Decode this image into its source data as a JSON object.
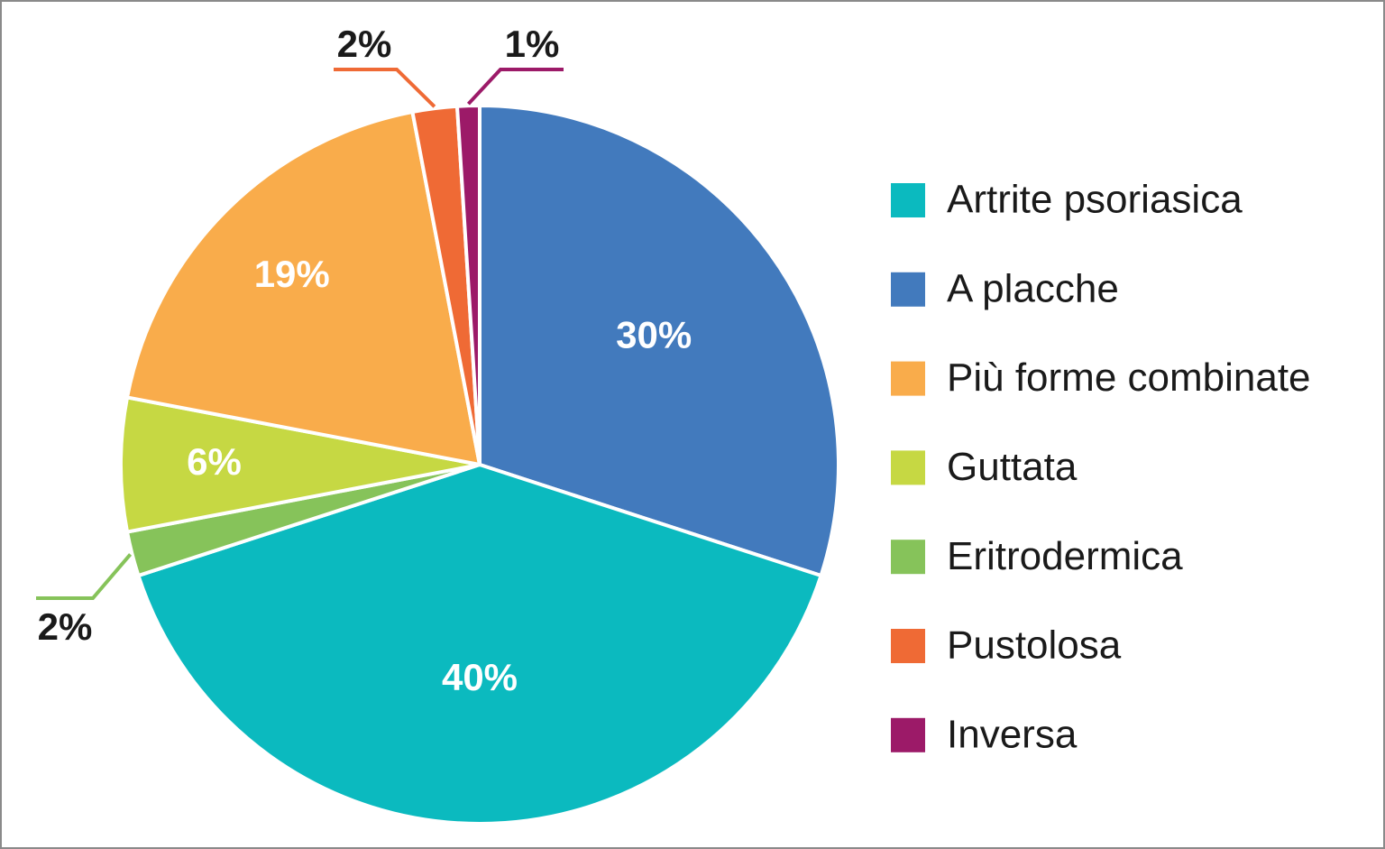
{
  "chart_data": {
    "type": "pie",
    "categories": [
      "Artrite psoriasica",
      "A placche",
      "Più forme combinate",
      "Guttata",
      "Eritrodermica",
      "Pustolosa",
      "Inversa"
    ],
    "values": [
      40,
      30,
      19,
      6,
      2,
      2,
      1
    ],
    "value_labels": [
      "40%",
      "30%",
      "19%",
      "6%",
      "2%",
      "2%",
      "1%"
    ],
    "colors": [
      "#0bbabf",
      "#427abd",
      "#f9ac4b",
      "#c6d843",
      "#86c35a",
      "#ef6a35",
      "#9c1a68"
    ],
    "legend": "right"
  }
}
